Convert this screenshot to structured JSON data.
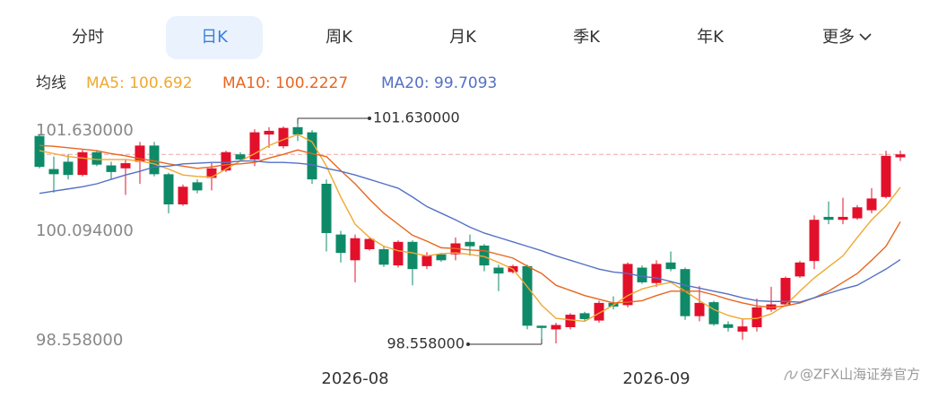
{
  "tabs": [
    "分时",
    "日K",
    "周K",
    "月K",
    "季K",
    "年K",
    "更多"
  ],
  "selected_tab": "日K",
  "watermark": "@ZFX山海证券官方",
  "chart_data": {
    "type": "candlestick",
    "legend_title": "均线",
    "categories": [
      null,
      null,
      null,
      null,
      null,
      null,
      null,
      null,
      null,
      null,
      null,
      null,
      null,
      null,
      null,
      null,
      null,
      null,
      null,
      null,
      null,
      null,
      "2026-08",
      null,
      null,
      null,
      null,
      null,
      null,
      null,
      null,
      null,
      null,
      null,
      null,
      null,
      null,
      null,
      null,
      null,
      null,
      null,
      null,
      "2026-09",
      null,
      null,
      null,
      null,
      null,
      null,
      null,
      null,
      null,
      null,
      null,
      null,
      null,
      null,
      null,
      null,
      null
    ],
    "open": [
      101.39,
      100.94,
      101.04,
      100.86,
      101.17,
      100.99,
      100.95,
      101.04,
      101.26,
      100.87,
      100.46,
      100.76,
      100.82,
      100.92,
      101.14,
      101.07,
      101.41,
      101.25,
      101.51,
      101.44,
      100.74,
      100.05,
      99.7,
      99.85,
      99.85,
      99.63,
      99.95,
      99.62,
      99.78,
      99.78,
      99.95,
      99.9,
      99.6,
      99.54,
      99.62,
      98.81,
      98.76,
      98.79,
      98.98,
      98.88,
      99.12,
      99.09,
      99.6,
      99.39,
      99.67,
      99.58,
      98.94,
      99.13,
      98.83,
      98.73,
      98.79,
      99.03,
      99.1,
      99.48,
      99.69,
      100.29,
      100.25,
      100.27,
      100.38,
      100.56,
      101.1
    ],
    "high": [
      101.41,
      101.11,
      101.14,
      101.2,
      101.19,
      101.04,
      101.07,
      101.31,
      101.31,
      100.89,
      100.73,
      100.8,
      101.02,
      101.19,
      101.17,
      101.48,
      101.51,
      101.52,
      101.63,
      101.47,
      100.8,
      100.1,
      100.05,
      100.01,
      99.89,
      99.97,
      99.97,
      99.81,
      99.8,
      100.01,
      100.05,
      99.92,
      99.64,
      99.64,
      99.64,
      98.81,
      98.85,
      98.98,
      99.0,
      99.15,
      99.21,
      99.67,
      99.63,
      99.7,
      99.82,
      99.6,
      99.35,
      99.15,
      98.87,
      98.91,
      99.18,
      99.34,
      99.48,
      99.69,
      100.31,
      100.5,
      100.55,
      100.45,
      100.68,
      101.19,
      101.19
    ],
    "low": [
      100.95,
      100.62,
      100.8,
      100.84,
      100.98,
      100.8,
      100.59,
      100.74,
      100.84,
      100.34,
      100.44,
      100.61,
      100.65,
      100.9,
      101.04,
      100.98,
      101.23,
      101.22,
      101.32,
      100.74,
      99.82,
      99.67,
      99.4,
      99.83,
      99.61,
      99.6,
      99.36,
      99.58,
      99.68,
      99.7,
      99.76,
      99.55,
      99.28,
      99.52,
      98.76,
      98.558,
      98.57,
      98.76,
      98.88,
      98.85,
      99.03,
      99.06,
      99.38,
      99.34,
      99.55,
      98.89,
      98.87,
      98.81,
      98.73,
      98.62,
      98.73,
      99.0,
      99.08,
      99.46,
      99.58,
      100.19,
      100.19,
      100.25,
      100.34,
      100.54,
      101.05
    ],
    "close": [
      100.97,
      100.87,
      100.86,
      101.17,
      101.0,
      100.9,
      101.02,
      101.26,
      100.87,
      100.46,
      100.7,
      100.65,
      100.95,
      101.17,
      101.07,
      101.44,
      101.46,
      101.5,
      101.41,
      100.8,
      100.07,
      99.8,
      100.0,
      99.99,
      99.64,
      99.95,
      99.58,
      99.76,
      99.7,
      99.93,
      99.89,
      99.63,
      99.52,
      99.62,
      98.81,
      98.78,
      98.82,
      98.96,
      98.9,
      99.12,
      99.07,
      99.65,
      99.4,
      99.65,
      99.58,
      98.94,
      99.12,
      98.83,
      98.78,
      98.8,
      99.06,
      99.1,
      99.46,
      99.67,
      100.25,
      100.25,
      100.29,
      100.42,
      100.54,
      101.12,
      101.14
    ],
    "up_color": "#e3102b",
    "down_color": "#0f8a68",
    "last_price_color": "#f2a5a5",
    "max_label": "101.630000",
    "min_label": "98.558000",
    "series": [
      {
        "name": "MA5: 100.692",
        "color": "#f0a830",
        "values": [
          101.19,
          101.15,
          101.11,
          101.09,
          101.07,
          101.07,
          101.07,
          101.05,
          101.01,
          100.94,
          100.86,
          100.84,
          100.83,
          100.94,
          101.05,
          101.15,
          101.26,
          101.34,
          101.41,
          101.31,
          100.98,
          100.56,
          100.19,
          100.01,
          99.89,
          99.83,
          99.8,
          99.76,
          99.79,
          99.8,
          99.78,
          99.75,
          99.67,
          99.58,
          99.34,
          99.09,
          98.91,
          98.89,
          98.87,
          98.98,
          99.09,
          99.22,
          99.31,
          99.36,
          99.4,
          99.28,
          99.15,
          99.03,
          98.95,
          98.9,
          98.91,
          98.97,
          99.09,
          99.28,
          99.46,
          99.61,
          99.76,
          100.01,
          100.25,
          100.44,
          100.692
        ]
      },
      {
        "name": "MA10: 100.2227",
        "color": "#e8661e",
        "values": [
          101.26,
          101.25,
          101.23,
          101.21,
          101.19,
          101.15,
          101.12,
          101.08,
          101.05,
          101.01,
          100.98,
          100.95,
          100.97,
          101.0,
          101.01,
          101.03,
          101.09,
          101.14,
          101.2,
          101.15,
          101.11,
          100.92,
          100.74,
          100.53,
          100.34,
          100.19,
          100.04,
          99.96,
          99.87,
          99.86,
          99.84,
          99.83,
          99.78,
          99.73,
          99.62,
          99.52,
          99.36,
          99.29,
          99.22,
          99.17,
          99.12,
          99.13,
          99.15,
          99.22,
          99.28,
          99.28,
          99.28,
          99.23,
          99.17,
          99.12,
          99.08,
          99.06,
          99.08,
          99.12,
          99.19,
          99.28,
          99.4,
          99.52,
          99.7,
          99.89,
          100.2227
        ]
      },
      {
        "name": "MA20: 99.7093",
        "color": "#5470c6",
        "values": [
          100.61,
          100.64,
          100.67,
          100.7,
          100.74,
          100.8,
          100.86,
          100.91,
          100.97,
          100.98,
          101.01,
          101.02,
          101.03,
          101.03,
          101.05,
          101.05,
          101.03,
          101.03,
          101.02,
          101.0,
          100.95,
          100.91,
          100.86,
          100.8,
          100.74,
          100.68,
          100.56,
          100.43,
          100.34,
          100.25,
          100.15,
          100.07,
          100.01,
          99.95,
          99.89,
          99.83,
          99.76,
          99.7,
          99.64,
          99.58,
          99.54,
          99.52,
          99.48,
          99.46,
          99.41,
          99.36,
          99.32,
          99.28,
          99.24,
          99.19,
          99.15,
          99.14,
          99.14,
          99.13,
          99.19,
          99.25,
          99.31,
          99.36,
          99.47,
          99.58,
          99.7093
        ]
      }
    ],
    "ylim": [
      98.558,
      101.63
    ],
    "yticks": [
      {
        "value": 101.63,
        "label": "101.630000"
      },
      {
        "value": 100.094,
        "label": "100.094000"
      },
      {
        "value": 98.558,
        "label": "98.558000"
      }
    ],
    "grid": false
  }
}
